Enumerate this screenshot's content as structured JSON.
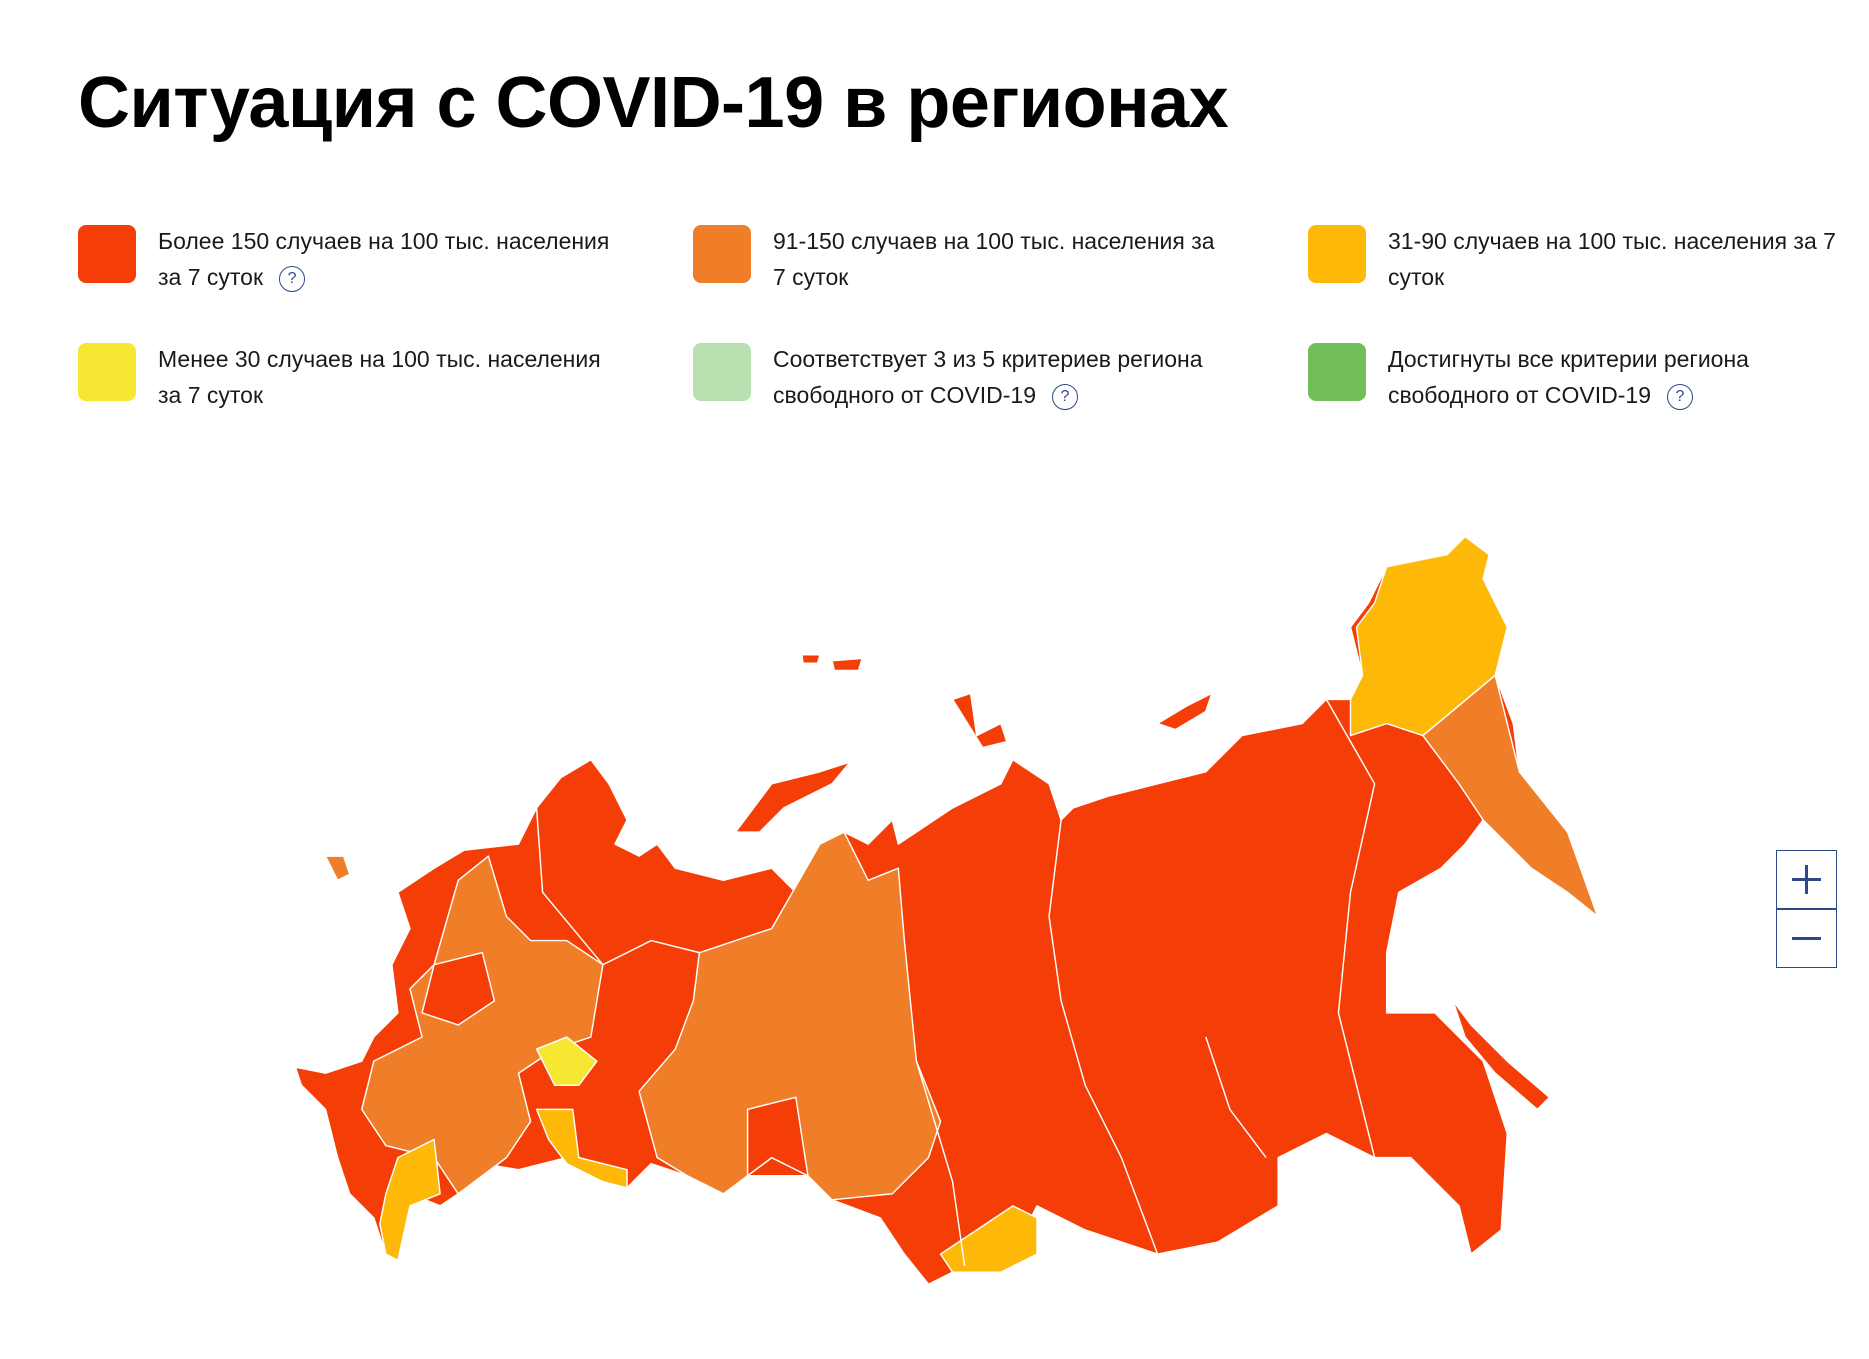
{
  "header": {
    "title": "Ситуация с COVID-19 в регионах"
  },
  "legend": {
    "items": [
      {
        "label": "Более 150 случаев на 100 тыс. населения за 7 суток",
        "color": "#f43d07",
        "help": "?"
      },
      {
        "label": "91-150 случаев на 100 тыс. населения за 7 суток",
        "color": "#f07d27"
      },
      {
        "label": "31-90 случаев на 100 тыс. населения за 7 суток",
        "color": "#fdb808"
      },
      {
        "label": "Менее 30 случаев на 100 тыс. населения за 7 суток",
        "color": "#f6e832"
      },
      {
        "label": "Соответствует 3 из 5 критериев региона свободного от COVID-19",
        "color": "#b8e0b0",
        "help": "?"
      },
      {
        "label": "Достигнуты все критерии региона свободного от COVID-19",
        "color": "#72bf5a",
        "help": "?"
      }
    ]
  }
}
